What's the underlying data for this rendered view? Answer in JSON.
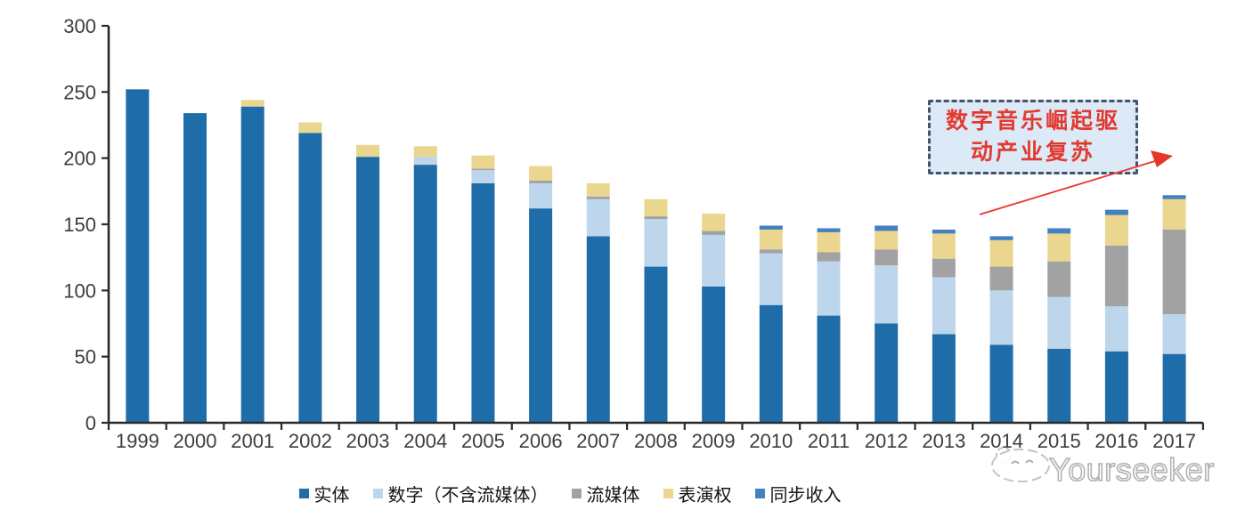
{
  "chart_data": {
    "type": "bar",
    "stacked": true,
    "title": "",
    "categories": [
      "1999",
      "2000",
      "2001",
      "2002",
      "2003",
      "2004",
      "2005",
      "2006",
      "2007",
      "2008",
      "2009",
      "2010",
      "2011",
      "2012",
      "2013",
      "2014",
      "2015",
      "2016",
      "2017"
    ],
    "series": [
      {
        "name": "实体",
        "color": "#1E6CA8",
        "values": [
          252,
          234,
          239,
          219,
          201,
          195,
          181,
          162,
          141,
          118,
          103,
          89,
          81,
          75,
          67,
          59,
          56,
          54,
          52
        ]
      },
      {
        "name": "数字（不含流媒体）",
        "color": "#BDD6EC",
        "values": [
          0,
          0,
          0,
          0,
          0,
          6,
          10,
          19,
          28,
          36,
          39,
          39,
          41,
          44,
          43,
          41,
          39,
          34,
          30
        ]
      },
      {
        "name": "流媒体",
        "color": "#A2A2A2",
        "values": [
          0,
          0,
          0,
          0,
          0,
          0,
          1,
          2,
          2,
          2,
          3,
          3,
          7,
          12,
          14,
          18,
          27,
          46,
          64
        ]
      },
      {
        "name": "表演权",
        "color": "#EBD690",
        "values": [
          0,
          0,
          5,
          8,
          9,
          8,
          10,
          11,
          10,
          13,
          13,
          15,
          15,
          14,
          19,
          20,
          21,
          23,
          23
        ]
      },
      {
        "name": "同步收入",
        "color": "#4381BF",
        "values": [
          0,
          0,
          0,
          0,
          0,
          0,
          0,
          0,
          0,
          0,
          0,
          3,
          3,
          4,
          3,
          3,
          4,
          4,
          3
        ]
      }
    ],
    "ylim": [
      0,
      300
    ],
    "yticks": [
      0,
      50,
      100,
      150,
      200,
      250,
      300
    ],
    "grid": false,
    "legend_position": "bottom"
  },
  "annotation": {
    "line1": "数字音乐崛起驱",
    "line2": "动产业复苏",
    "text_color": "#E23A30",
    "box_fill": "#DCE9F6",
    "box_border": "#44546A",
    "arrow_color": "#E8352B"
  },
  "watermark": {
    "text": "Yourseeker"
  }
}
